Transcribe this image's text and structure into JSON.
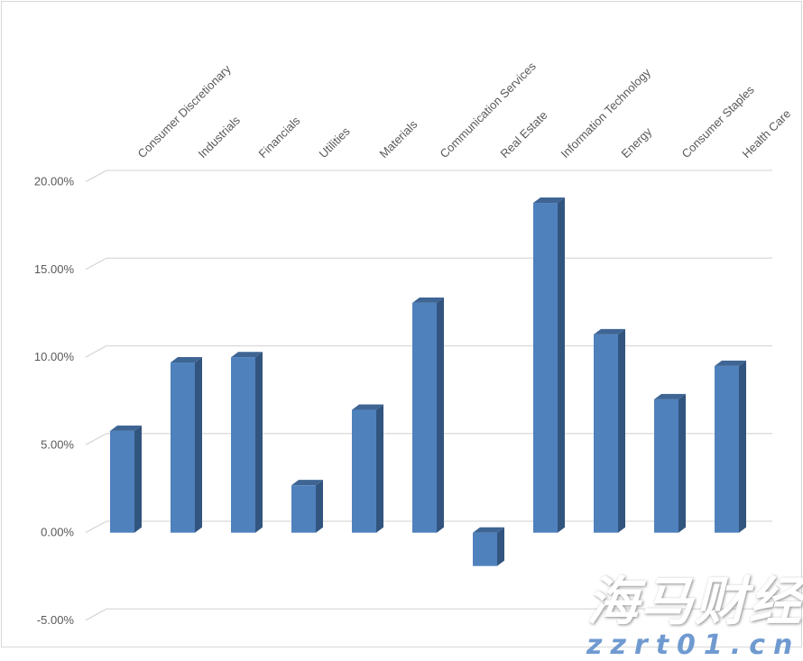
{
  "chart_data": {
    "type": "bar",
    "style": "3d-column",
    "title": "",
    "xlabel": "",
    "ylabel": "",
    "categories": [
      "Consumer Discretionary",
      "Industrials",
      "Financials",
      "Utilities",
      "Materials",
      "Communication Services",
      "Real Estate",
      "Information Technology",
      "Energy",
      "Consumer Staples",
      "Health Care"
    ],
    "values": [
      5.8,
      9.7,
      10.0,
      2.7,
      7.0,
      13.1,
      -1.9,
      18.8,
      11.3,
      7.6,
      9.5
    ],
    "value_unit": "%",
    "ylim": [
      -5,
      20
    ],
    "yticks": [
      -5,
      0,
      5,
      10,
      15,
      20
    ],
    "ytick_labels": [
      "-5.00%",
      "0.00%",
      "5.00%",
      "10.00%",
      "15.00%",
      "20.00%"
    ],
    "grid": true,
    "legend": "none",
    "category_labels_position": "top",
    "colors": {
      "bar_front": "#4f81bd",
      "bar_side": "#32557f",
      "bar_top": "#3e6594",
      "grid": "#d9d9d9",
      "text": "#595959"
    }
  },
  "watermark": {
    "line1": "海马财经",
    "line2": "zzrt01.cn"
  }
}
